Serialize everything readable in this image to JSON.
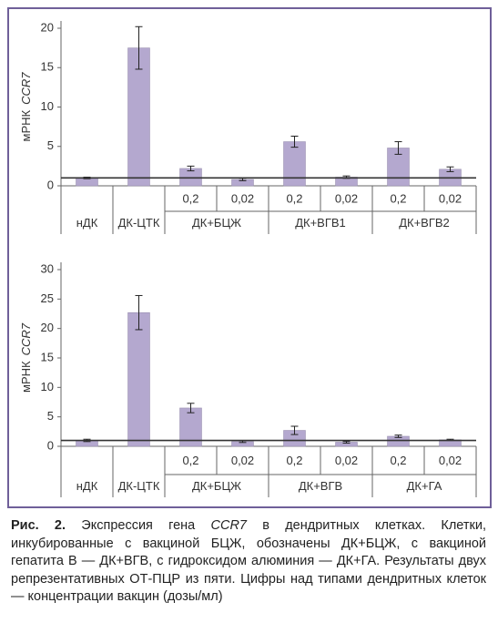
{
  "chart_data": [
    {
      "type": "bar",
      "ylabel": {
        "text": "мРНК",
        "gene": "CCR7"
      },
      "categories": [
        null,
        null,
        "0,2",
        "0,02",
        "0,2",
        "0,02",
        "0,2",
        "0,02"
      ],
      "groups": [
        {
          "name": "нДК",
          "size": 1
        },
        {
          "name": "ДК-ЦТК",
          "size": 1
        },
        {
          "name": "ДК+БЦЖ",
          "size": 2
        },
        {
          "name": "ДК+ВГВ1",
          "size": 2
        },
        {
          "name": "ДК+ВГВ2",
          "size": 2
        }
      ],
      "values": [
        1.0,
        17.5,
        2.2,
        0.8,
        5.6,
        1.1,
        4.8,
        2.1
      ],
      "errors": [
        0.1,
        2.7,
        0.3,
        0.15,
        0.7,
        0.15,
        0.8,
        0.3
      ],
      "reference_line": 1,
      "color": "#b4a8cf",
      "ylim": [
        0,
        20
      ],
      "yticks": [
        0,
        5,
        10,
        15,
        20
      ]
    },
    {
      "type": "bar",
      "ylabel": {
        "text": "мРНК",
        "gene": "CCR7"
      },
      "categories": [
        null,
        null,
        "0,2",
        "0,02",
        "0,2",
        "0,02",
        "0,2",
        "0,02"
      ],
      "groups": [
        {
          "name": "нДК",
          "size": 1
        },
        {
          "name": "ДК-ЦТК",
          "size": 1
        },
        {
          "name": "ДК+БЦЖ",
          "size": 2
        },
        {
          "name": "ДК+ВГВ",
          "size": 2
        },
        {
          "name": "ДК+ГА",
          "size": 2
        }
      ],
      "values": [
        1.0,
        22.7,
        6.5,
        0.8,
        2.7,
        0.7,
        1.7,
        1.1
      ],
      "errors": [
        0.2,
        2.9,
        0.8,
        0.15,
        0.7,
        0.15,
        0.2,
        0.1
      ],
      "reference_line": 1,
      "color": "#b4a8cf",
      "ylim": [
        0,
        30
      ],
      "yticks": [
        0,
        5,
        10,
        15,
        20,
        25,
        30
      ]
    }
  ],
  "caption": {
    "label": "Рис. 2.",
    "parts": [
      " Экспрессия гена ",
      "CCR7",
      " в дендритных клетках. Клетки, инкубированные с вакциной БЦЖ, обозначены ДК+БЦЖ, с вакциной гепатита В — ДК+ВГВ, с гидроксидом алюминия — ДК+ГА. Результаты двух репрезентативных ОТ-ПЦР из пяти. Цифры над типами дендритных клеток — концентрации вакцин (дозы/мл)"
    ]
  }
}
